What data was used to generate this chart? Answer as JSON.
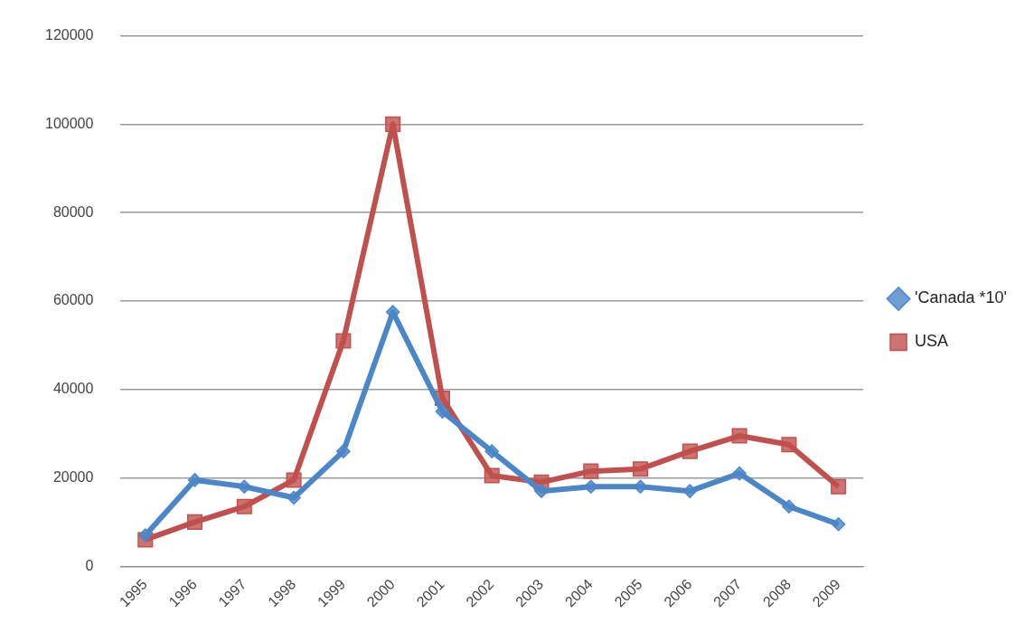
{
  "chart_data": {
    "type": "line",
    "categories": [
      "1995",
      "1996",
      "1997",
      "1998",
      "1999",
      "2000",
      "2001",
      "2002",
      "2003",
      "2004",
      "2005",
      "2006",
      "2007",
      "2008",
      "2009"
    ],
    "series": [
      {
        "name": "'Canada *10'",
        "color": "#4a86c8",
        "marker": "diamond",
        "values": [
          7000,
          19500,
          18000,
          15500,
          26000,
          57500,
          35000,
          26000,
          17000,
          18000,
          18000,
          17000,
          21000,
          13500,
          9500
        ]
      },
      {
        "name": "USA",
        "color": "#c0504d",
        "marker": "square",
        "values": [
          6000,
          10000,
          13500,
          19500,
          51000,
          100000,
          38000,
          20500,
          19000,
          21500,
          22000,
          26000,
          29500,
          27500,
          18000
        ]
      }
    ],
    "ylim": [
      0,
      120000
    ],
    "yticks": [
      0,
      20000,
      40000,
      60000,
      80000,
      100000,
      120000
    ],
    "grid": "y",
    "legend": "right"
  }
}
